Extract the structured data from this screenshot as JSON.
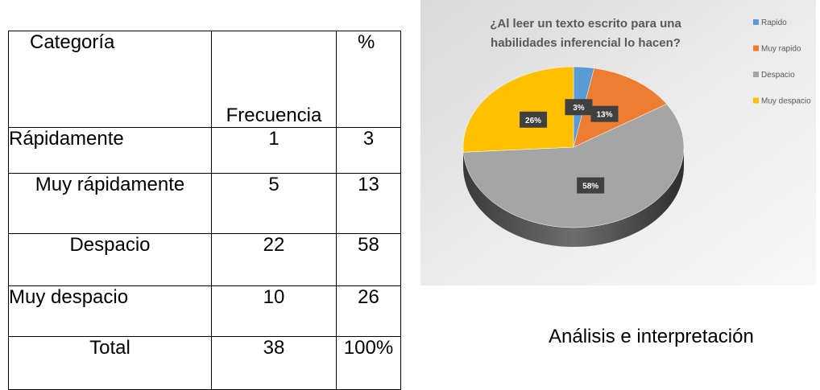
{
  "table": {
    "header": [
      "Categoría",
      "Frecuencia",
      "%"
    ],
    "rows": [
      [
        "Rápidamente",
        1,
        3
      ],
      [
        "Muy rápidamente",
        5,
        13
      ],
      [
        "Despacio",
        22,
        58
      ],
      [
        "Muy despacio",
        10,
        26
      ],
      [
        "Total",
        38,
        "100%"
      ]
    ]
  },
  "chart_data": {
    "type": "pie",
    "title": "¿Al leer un texto escrito para una habilidades inferencial lo hacen?",
    "categories": [
      "Rapido",
      "Muy rapido",
      "Despacio",
      "Muy despacio"
    ],
    "values": [
      3,
      13,
      58,
      26
    ],
    "value_labels": [
      "3%",
      "13%",
      "58%",
      "26%"
    ],
    "colors": [
      "#5b9bd5",
      "#ed7d31",
      "#a5a5a5",
      "#ffc000"
    ],
    "legend": "right"
  },
  "caption": "Análisis e interpretación"
}
